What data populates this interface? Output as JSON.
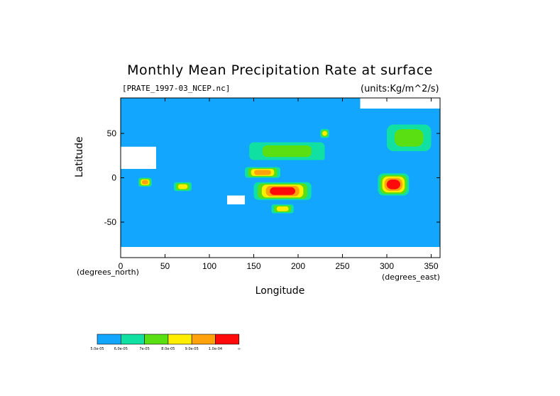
{
  "chart_data": {
    "type": "heatmap",
    "title": "Monthly Mean Precipitation Rate at surface",
    "subtitle": "[PRATE_1997-03_NCEP.nc]",
    "units": "(units:Kg/m^2/s)",
    "xlabel": "Longitude",
    "ylabel": "Latitude",
    "x_unit_label": "(degrees_east)",
    "y_unit_label": "(degrees_north)",
    "xlim": [
      0,
      360
    ],
    "ylim": [
      -90,
      90
    ],
    "xticks": [
      "0",
      "50",
      "100",
      "150",
      "200",
      "250",
      "300",
      "350"
    ],
    "yticks": [
      "50",
      "0",
      "-50"
    ],
    "legend_placement": "bottom-left",
    "colorbar": {
      "colors": [
        "#12a6ff",
        "#11e0a3",
        "#5adf12",
        "#ffee00",
        "#ffa10a",
        "#ff0a0a"
      ],
      "labels": [
        "5.0e-05",
        "6.0e-05",
        "7e-05",
        "8.0e-05",
        "9.0e-05",
        "1.0e-04",
        "∞"
      ]
    },
    "regions": [
      {
        "lon": [
          150,
          215
        ],
        "lat": [
          -25,
          -5
        ],
        "level": 6
      },
      {
        "lon": [
          140,
          180
        ],
        "lat": [
          0,
          12
        ],
        "level": 5
      },
      {
        "lon": [
          290,
          325
        ],
        "lat": [
          -20,
          5
        ],
        "level": 6
      },
      {
        "lon": [
          20,
          35
        ],
        "lat": [
          -10,
          0
        ],
        "level": 5
      },
      {
        "lon": [
          60,
          80
        ],
        "lat": [
          -15,
          -5
        ],
        "level": 4
      },
      {
        "lon": [
          145,
          230
        ],
        "lat": [
          20,
          40
        ],
        "level": 3
      },
      {
        "lon": [
          300,
          350
        ],
        "lat": [
          30,
          60
        ],
        "level": 3
      },
      {
        "lon": [
          170,
          195
        ],
        "lat": [
          -40,
          -30
        ],
        "level": 4
      },
      {
        "lon": [
          215,
          230
        ],
        "lat": [
          20,
          30
        ],
        "level": 2
      },
      {
        "lon": [
          225,
          235
        ],
        "lat": [
          45,
          55
        ],
        "level": 4
      }
    ],
    "missing": [
      {
        "lon": [
          0,
          40
        ],
        "lat": [
          10,
          35
        ]
      },
      {
        "lon": [
          120,
          140
        ],
        "lat": [
          -30,
          -20
        ]
      },
      {
        "lon": [
          0,
          360
        ],
        "lat": [
          -90,
          -78
        ]
      },
      {
        "lon": [
          270,
          360
        ],
        "lat": [
          78,
          90
        ]
      }
    ]
  }
}
